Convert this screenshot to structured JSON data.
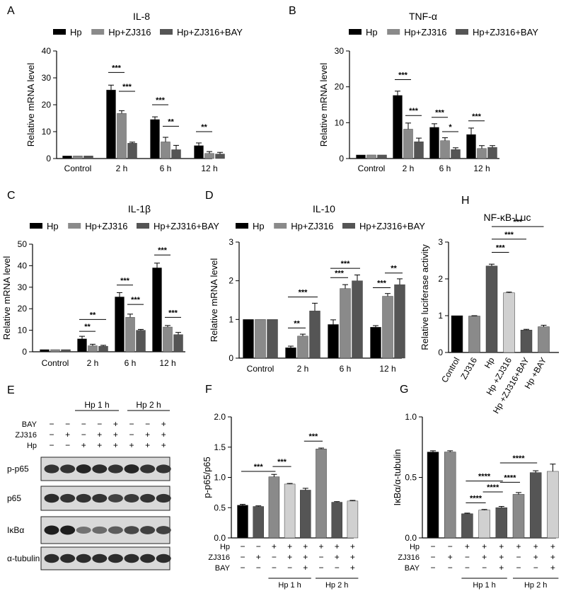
{
  "figure": {
    "colors": {
      "black": "#000000",
      "dark": "#555555",
      "mid": "#8a8a8a",
      "light": "#d0d0d0",
      "white": "#ffffff"
    },
    "legend_items": [
      "Hp",
      "Hp+ZJ316",
      "Hp+ZJ316+BAY"
    ]
  },
  "chart_data": [
    {
      "panel": "A",
      "type": "bar",
      "title": "IL-8",
      "ylabel": "Relative mRNA level",
      "ylim": [
        0,
        40
      ],
      "yticks": [
        0,
        10,
        20,
        30,
        40
      ],
      "categories": [
        "Control",
        "2 h",
        "6 h",
        "12 h"
      ],
      "legend": [
        "Hp",
        "Hp+ZJ316",
        "Hp+ZJ316+BAY"
      ],
      "series": [
        {
          "name": "Hp",
          "values": [
            1.0,
            25.5,
            14.5,
            4.8
          ],
          "errors": [
            0,
            1.8,
            1.0,
            1.0
          ]
        },
        {
          "name": "Hp+ZJ316",
          "values": [
            1.0,
            16.8,
            6.2,
            1.9
          ],
          "errors": [
            0,
            1.0,
            1.7,
            0.7
          ]
        },
        {
          "name": "Hp+ZJ316+BAY",
          "values": [
            1.0,
            5.7,
            3.3,
            1.7
          ],
          "errors": [
            0,
            0.4,
            1.6,
            0.6
          ]
        }
      ],
      "sig": [
        {
          "cat": 1,
          "from": 0,
          "to": 1,
          "y": 32,
          "text": "***"
        },
        {
          "cat": 1,
          "from": 1,
          "to": 2,
          "y": 25,
          "text": "***"
        },
        {
          "cat": 2,
          "from": 0,
          "to": 1,
          "y": 20,
          "text": "***"
        },
        {
          "cat": 2,
          "from": 1,
          "to": 2,
          "y": 12,
          "text": "**"
        },
        {
          "cat": 3,
          "from": 0,
          "to": 1,
          "y": 10,
          "text": "**"
        }
      ]
    },
    {
      "panel": "B",
      "type": "bar",
      "title": "TNF-α",
      "ylabel": "Relative mRNA level",
      "ylim": [
        0,
        30
      ],
      "yticks": [
        0,
        10,
        20,
        30
      ],
      "categories": [
        "Control",
        "2 h",
        "6 h",
        "12 h"
      ],
      "legend": [
        "Hp",
        "Hp+ZJ316",
        "Hp+ZJ316+BAY"
      ],
      "series": [
        {
          "name": "Hp",
          "values": [
            1.0,
            17.6,
            8.7,
            6.7
          ],
          "errors": [
            0,
            1.2,
            1.0,
            1.8
          ]
        },
        {
          "name": "Hp+ZJ316",
          "values": [
            1.0,
            8.2,
            5.0,
            2.8
          ],
          "errors": [
            0,
            1.7,
            0.8,
            0.8
          ]
        },
        {
          "name": "Hp+ZJ316+BAY",
          "values": [
            1.0,
            4.7,
            2.5,
            3.1
          ],
          "errors": [
            0,
            1.0,
            0.5,
            0.5
          ]
        }
      ],
      "sig": [
        {
          "cat": 1,
          "from": 0,
          "to": 1,
          "y": 22,
          "text": "***"
        },
        {
          "cat": 1,
          "from": 1,
          "to": 2,
          "y": 12,
          "text": "***"
        },
        {
          "cat": 2,
          "from": 0,
          "to": 1,
          "y": 11.5,
          "text": "***"
        },
        {
          "cat": 2,
          "from": 1,
          "to": 2,
          "y": 7.5,
          "text": "*"
        },
        {
          "cat": 3,
          "from": 0,
          "to": 1,
          "y": 10.5,
          "text": "***"
        }
      ]
    },
    {
      "panel": "C",
      "type": "bar",
      "title": "IL-1β",
      "ylabel": "Relative mRNA level",
      "ylim": [
        0,
        50
      ],
      "yticks": [
        0,
        10,
        20,
        30,
        40,
        50
      ],
      "categories": [
        "Control",
        "2 h",
        "6 h",
        "12 h"
      ],
      "legend": [
        "Hp",
        "Hp+ZJ316",
        "Hp+ZJ316+BAY"
      ],
      "series": [
        {
          "name": "Hp",
          "values": [
            1.0,
            6.0,
            25.5,
            39.0
          ],
          "errors": [
            0,
            1.2,
            2.0,
            2.2
          ]
        },
        {
          "name": "Hp+ZJ316",
          "values": [
            1.0,
            2.8,
            16.0,
            11.5
          ],
          "errors": [
            0,
            0.7,
            1.5,
            0.7
          ]
        },
        {
          "name": "Hp+ZJ316+BAY",
          "values": [
            1.0,
            2.6,
            10.0,
            8.0
          ],
          "errors": [
            0,
            0.4,
            0.4,
            1.0
          ]
        }
      ],
      "sig": [
        {
          "cat": 1,
          "from": 0,
          "to": 2,
          "y": 15,
          "text": "**"
        },
        {
          "cat": 1,
          "from": 0,
          "to": 1,
          "y": 9.5,
          "text": "**"
        },
        {
          "cat": 2,
          "from": 0,
          "to": 1,
          "y": 31,
          "text": "***"
        },
        {
          "cat": 2,
          "from": 1,
          "to": 2,
          "y": 22,
          "text": "***"
        },
        {
          "cat": 3,
          "from": 0,
          "to": 1,
          "y": 45,
          "text": "***"
        },
        {
          "cat": 3,
          "from": 1,
          "to": 2,
          "y": 16,
          "text": "***"
        }
      ]
    },
    {
      "panel": "D",
      "type": "bar",
      "title": "IL-10",
      "ylabel": "Relative mRNA level",
      "ylim": [
        0,
        3
      ],
      "yticks": [
        0,
        1,
        2,
        3
      ],
      "categories": [
        "Control",
        "2 h",
        "6 h",
        "12 h"
      ],
      "legend": [
        "Hp",
        "Hp+ZJ316",
        "Hp+ZJ316+BAY"
      ],
      "series": [
        {
          "name": "Hp",
          "values": [
            1.0,
            0.27,
            0.87,
            0.8
          ],
          "errors": [
            0,
            0.04,
            0.12,
            0.04
          ]
        },
        {
          "name": "Hp+ZJ316",
          "values": [
            1.0,
            0.57,
            1.8,
            1.6
          ],
          "errors": [
            0,
            0.05,
            0.1,
            0.07
          ]
        },
        {
          "name": "Hp+ZJ316+BAY",
          "values": [
            1.0,
            1.22,
            2.0,
            1.9
          ],
          "errors": [
            0,
            0.2,
            0.15,
            0.15
          ]
        }
      ],
      "sig": [
        {
          "cat": 1,
          "from": 0,
          "to": 1,
          "y": 0.78,
          "text": "**"
        },
        {
          "cat": 1,
          "from": 0,
          "to": 2,
          "y": 1.58,
          "text": "***"
        },
        {
          "cat": 2,
          "from": 0,
          "to": 2,
          "y": 2.32,
          "text": "***"
        },
        {
          "cat": 2,
          "from": 0,
          "to": 1,
          "y": 2.08,
          "text": "***"
        },
        {
          "cat": 3,
          "from": 0,
          "to": 1,
          "y": 1.82,
          "text": "***"
        },
        {
          "cat": 3,
          "from": 1,
          "to": 2,
          "y": 2.2,
          "text": "**"
        }
      ]
    },
    {
      "panel": "H",
      "type": "bar",
      "title": "NF-κB-Luc",
      "ylabel": "Relative luciferase activity",
      "ylim": [
        0,
        3
      ],
      "yticks": [
        0,
        1,
        2,
        3
      ],
      "categories": [
        "Control",
        "ZJ316",
        "Hp",
        "Hp +ZJ316",
        "Hp +ZJ316+BAY",
        "Hp +BAY"
      ],
      "values": [
        1.0,
        0.99,
        2.35,
        1.62,
        0.61,
        0.7
      ],
      "errors": [
        0,
        0.01,
        0.05,
        0.02,
        0.02,
        0.04
      ],
      "colors": [
        "black",
        "mid",
        "dark",
        "light",
        "dark",
        "mid"
      ],
      "sig": [
        {
          "from": 2,
          "to": 5,
          "y": 3.42,
          "text": "***"
        },
        {
          "from": 2,
          "to": 4,
          "y": 3.08,
          "text": "***"
        },
        {
          "from": 2,
          "to": 3,
          "y": 2.72,
          "text": "***"
        }
      ]
    },
    {
      "panel": "F",
      "type": "bar",
      "ylabel": "p-p65/p65",
      "ylim": [
        0,
        2.0
      ],
      "yticks": [
        "0.0",
        "0.5",
        "1.0",
        "1.5",
        "2.0"
      ],
      "values": [
        0.54,
        0.52,
        1.01,
        0.89,
        0.79,
        1.47,
        0.59,
        0.61
      ],
      "errors": [
        0.015,
        0.01,
        0.04,
        0.01,
        0.03,
        0.015,
        0.01,
        0.01
      ],
      "colors": [
        "black",
        "dark",
        "mid",
        "light",
        "dark",
        "mid",
        "dark",
        "light"
      ],
      "treatment_rows": {
        "Hp": [
          "−",
          "−",
          "+",
          "+",
          "+",
          "+",
          "+",
          "+"
        ],
        "ZJ316": [
          "−",
          "+",
          "−",
          "+",
          "+",
          "−",
          "+",
          "+"
        ],
        "BAY": [
          "−",
          "−",
          "−",
          "−",
          "+",
          "−",
          "−",
          "+"
        ]
      },
      "groups": [
        {
          "label": "Hp 1 h",
          "from": 2,
          "to": 4
        },
        {
          "label": "Hp 2 h",
          "from": 5,
          "to": 7
        }
      ],
      "sig": [
        {
          "from": 0,
          "to": 2,
          "y": 1.1,
          "text": "***"
        },
        {
          "from": 2,
          "to": 3,
          "y": 1.18,
          "text": "***"
        },
        {
          "from": 4,
          "to": 5,
          "y": 1.6,
          "text": "***"
        }
      ]
    },
    {
      "panel": "G",
      "type": "bar",
      "ylabel": "IκBα/α-tubulin",
      "ylim": [
        0,
        1.0
      ],
      "yticks": [
        "0.0",
        "0.5",
        "1.0"
      ],
      "values": [
        0.71,
        0.71,
        0.2,
        0.23,
        0.25,
        0.36,
        0.54,
        0.55
      ],
      "errors": [
        0.01,
        0.01,
        0.005,
        0.005,
        0.01,
        0.015,
        0.015,
        0.06
      ],
      "colors": [
        "black",
        "mid",
        "dark",
        "light",
        "dark",
        "mid",
        "dark",
        "light"
      ],
      "treatment_rows": {
        "Hp": [
          "−",
          "−",
          "+",
          "+",
          "+",
          "+",
          "+",
          "+"
        ],
        "ZJ316": [
          "−",
          "+",
          "−",
          "+",
          "+",
          "−",
          "+",
          "+"
        ],
        "BAY": [
          "−",
          "−",
          "−",
          "−",
          "+",
          "−",
          "−",
          "+"
        ]
      },
      "groups": [
        {
          "label": "Hp 1 h",
          "from": 2,
          "to": 4
        },
        {
          "label": "Hp 2 h",
          "from": 5,
          "to": 7
        }
      ],
      "sig": [
        {
          "from": 2,
          "to": 4,
          "y": 0.47,
          "text": "****"
        },
        {
          "from": 3,
          "to": 4,
          "y": 0.38,
          "text": "****"
        },
        {
          "from": 2,
          "to": 3,
          "y": 0.29,
          "text": "****"
        },
        {
          "from": 4,
          "to": 6,
          "y": 0.62,
          "text": "****"
        },
        {
          "from": 4,
          "to": 5,
          "y": 0.46,
          "text": "****"
        }
      ]
    }
  ],
  "western_blot": {
    "panel": "E",
    "groups": [
      {
        "label": "Hp 1 h"
      },
      {
        "label": "Hp 2 h"
      }
    ],
    "treatment_rows": {
      "BAY": [
        "−",
        "−",
        "−",
        "−",
        "+",
        "−",
        "−",
        "+"
      ],
      "ZJ316": [
        "−",
        "+",
        "−",
        "+",
        "+",
        "−",
        "+",
        "+"
      ],
      "Hp": [
        "−",
        "−",
        "+",
        "+",
        "+",
        "+",
        "+",
        "+"
      ]
    },
    "bands": [
      {
        "label": "p-p65",
        "intensity": [
          0.85,
          0.85,
          0.95,
          0.9,
          0.85,
          0.95,
          0.85,
          0.85
        ]
      },
      {
        "label": "p65",
        "intensity": [
          0.9,
          0.85,
          0.85,
          0.85,
          0.75,
          0.8,
          0.85,
          0.85
        ]
      },
      {
        "label": "IκBα",
        "intensity": [
          1.0,
          1.0,
          0.4,
          0.45,
          0.55,
          0.7,
          0.75,
          0.75
        ]
      },
      {
        "label": "α-tubulin",
        "intensity": [
          0.9,
          0.9,
          0.9,
          0.9,
          0.9,
          0.9,
          0.9,
          0.9
        ]
      }
    ]
  }
}
